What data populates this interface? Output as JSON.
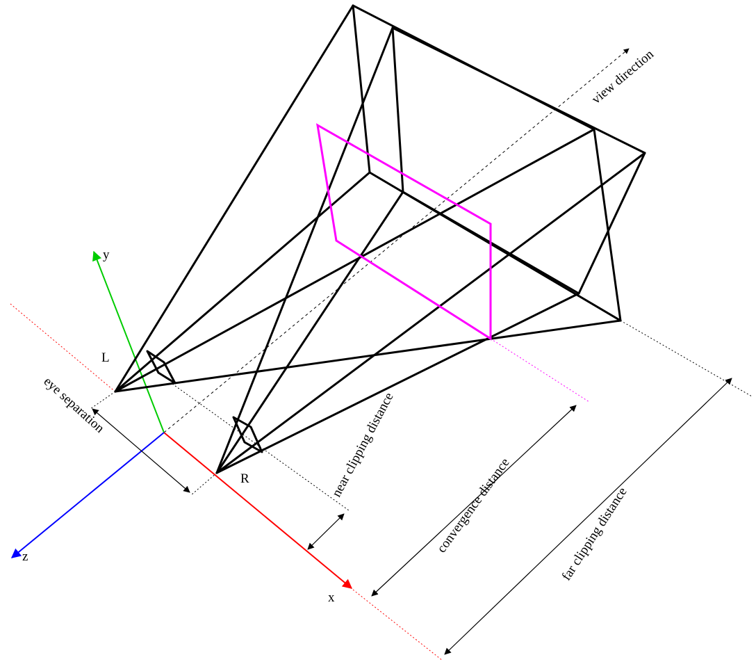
{
  "labels": {
    "left_eye": "L",
    "right_eye": "R",
    "axis_x": "x",
    "axis_y": "y",
    "axis_z": "z",
    "view_direction": "view direction",
    "eye_separation": "eye separation",
    "near_clipping_distance": "near clipping distance",
    "convergence_distance": "convergence distance",
    "far_clipping_distance": "far clipping distance"
  },
  "colors": {
    "frustum": "#000000",
    "convergence_plane": "#ff00ff",
    "axis_x": "#ff0000",
    "axis_y": "#00cc00",
    "axis_z": "#0000ff"
  }
}
